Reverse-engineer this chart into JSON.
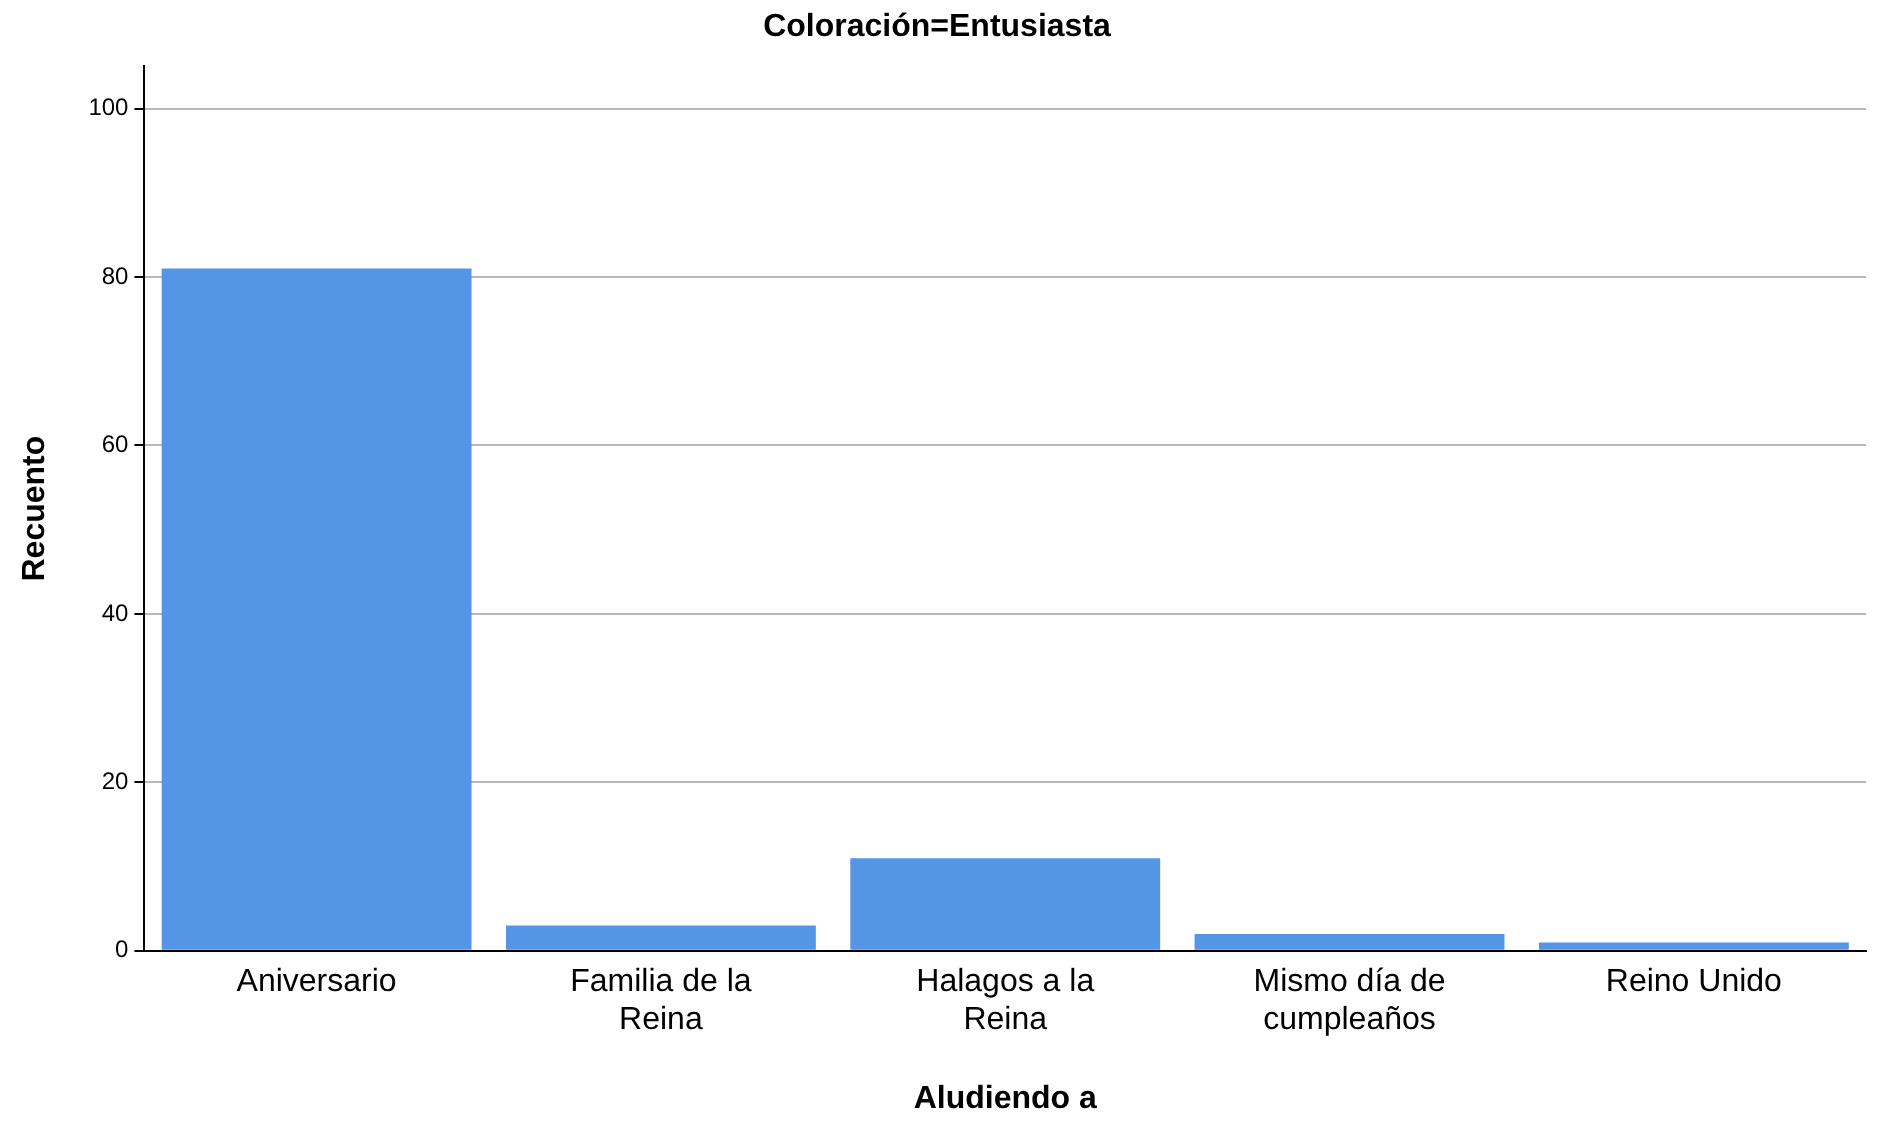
{
  "chart_data": {
    "type": "bar",
    "title": "Coloración=Entusiasta",
    "xlabel": "Aludiendo a",
    "ylabel": "Recuento",
    "categories": [
      "Aniversario",
      "Familia de la Reina",
      "Halagos a la Reina",
      "Mismo día de cumpleaños",
      "Reino Unido"
    ],
    "values": [
      81,
      3,
      11,
      2,
      1
    ],
    "color": "#5595e5",
    "ylim": [
      0,
      105
    ],
    "yticks": [
      0,
      20,
      40,
      60,
      80,
      100
    ],
    "grid": "y",
    "legend": false
  }
}
